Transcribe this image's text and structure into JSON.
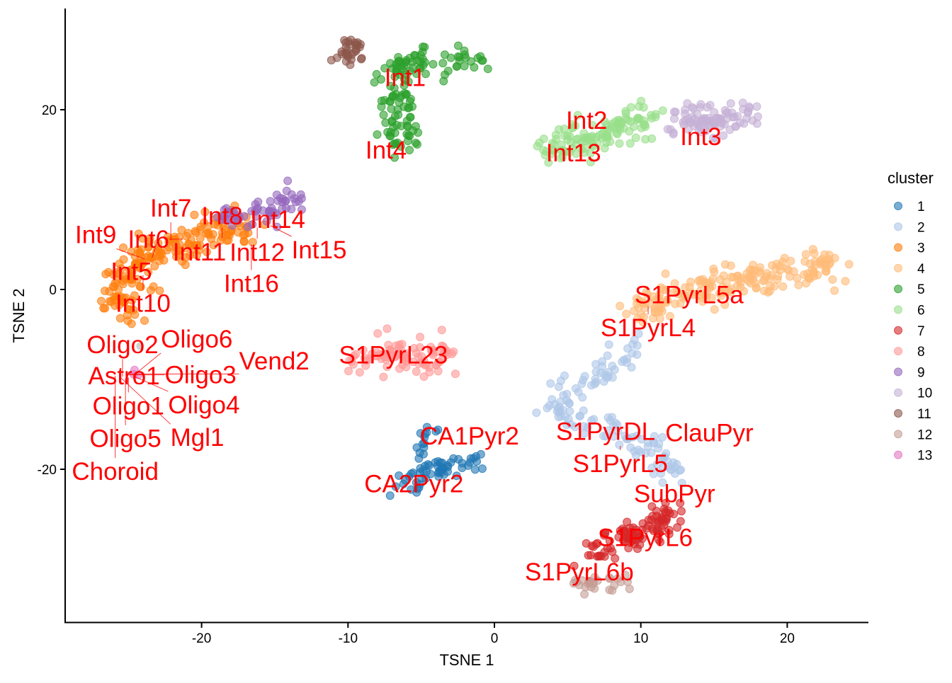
{
  "chart_data": {
    "type": "scatter",
    "title": "",
    "xlabel": "TSNE 1",
    "ylabel": "TSNE 2",
    "xlim": [
      -29.5,
      25.5
    ],
    "ylim": [
      -36.5,
      31
    ],
    "xticks": [
      -20,
      -10,
      0,
      10,
      20
    ],
    "yticks": [
      -20,
      0,
      20
    ],
    "grid": false,
    "legend": {
      "title": "cluster",
      "placement": "right"
    },
    "clusters": [
      {
        "name": "1",
        "color": "#1f77b4",
        "n": 70,
        "spread": 0.55,
        "path": [
          [
            -4.6,
            -15
          ],
          [
            -5,
            -20.5
          ],
          [
            -6.8,
            -22.5
          ]
        ],
        "extra": [
          [
            -5,
            -20
          ],
          [
            -1.2,
            -19.3
          ]
        ]
      },
      {
        "name": "2",
        "color": "#aec7e8",
        "n": 130,
        "spread": 0.6,
        "path": [
          [
            9.8,
            -6.2
          ],
          [
            7.5,
            -9
          ],
          [
            4.8,
            -11.5
          ],
          [
            4,
            -13.5
          ],
          [
            7.5,
            -15.5
          ],
          [
            11,
            -18
          ],
          [
            12.8,
            -21
          ]
        ]
      },
      {
        "name": "3",
        "color": "#ff7f0e",
        "n": 190,
        "spread": 0.75,
        "path": [
          [
            -25.5,
            -2.5
          ],
          [
            -25.2,
            1
          ],
          [
            -24,
            3.5
          ],
          [
            -21,
            5.5
          ],
          [
            -17,
            7
          ]
        ]
      },
      {
        "name": "4",
        "color": "#ffbb78",
        "n": 190,
        "spread": 0.75,
        "path": [
          [
            9.8,
            -3
          ],
          [
            12,
            -0.5
          ],
          [
            15,
            0.5
          ],
          [
            19,
            1.8
          ],
          [
            23,
            3
          ]
        ]
      },
      {
        "name": "5",
        "color": "#2ca02c",
        "n": 130,
        "spread": 0.65,
        "path": [
          [
            -7.8,
            23.5
          ],
          [
            -5,
            25.5
          ],
          [
            -1.5,
            25.5
          ]
        ],
        "extra": [
          [
            -6.8,
            23
          ],
          [
            -6.5,
            16
          ]
        ]
      },
      {
        "name": "6",
        "color": "#98df8a",
        "n": 120,
        "spread": 0.8,
        "path": [
          [
            3.5,
            15.5
          ],
          [
            7,
            17
          ],
          [
            11,
            19.5
          ]
        ]
      },
      {
        "name": "7",
        "color": "#d62728",
        "n": 100,
        "spread": 0.6,
        "path": [
          [
            6.9,
            -29.6
          ],
          [
            10,
            -27
          ],
          [
            12.3,
            -24.5
          ]
        ]
      },
      {
        "name": "8",
        "color": "#ff9896",
        "n": 90,
        "spread": 0.7,
        "path": [
          [
            -9.5,
            -7.3
          ],
          [
            -3.5,
            -7.5
          ]
        ]
      },
      {
        "name": "9",
        "color": "#9467bd",
        "n": 60,
        "spread": 0.6,
        "path": [
          [
            -18.3,
            8
          ],
          [
            -16,
            8.5
          ],
          [
            -13.5,
            10
          ]
        ]
      },
      {
        "name": "10",
        "color": "#c5b0d5",
        "n": 90,
        "spread": 0.7,
        "path": [
          [
            12.5,
            18
          ],
          [
            15,
            18.8
          ],
          [
            17.8,
            19.5
          ]
        ]
      },
      {
        "name": "11",
        "color": "#8c564b",
        "n": 30,
        "spread": 0.4,
        "path": [
          [
            -10.3,
            26
          ],
          [
            -9.7,
            27
          ]
        ]
      },
      {
        "name": "12",
        "color": "#c49c94",
        "n": 25,
        "spread": 0.5,
        "path": [
          [
            5.6,
            -32.8
          ],
          [
            8.5,
            -32.5
          ]
        ]
      },
      {
        "name": "13",
        "color": "#e377c2",
        "n": 3,
        "spread": 0.3,
        "path": [
          [
            -24.5,
            -9.5
          ],
          [
            -24.3,
            -9.6
          ]
        ]
      }
    ],
    "other_points": [
      {
        "x": -24.2,
        "y": -6.3,
        "color": "#c7c7c7"
      }
    ],
    "labels": [
      {
        "text": "Int1",
        "x": -6.1,
        "y": 23.6
      },
      {
        "text": "Int4",
        "x": -7.4,
        "y": 15.5
      },
      {
        "text": "Int2",
        "x": 6.3,
        "y": 18.8
      },
      {
        "text": "Int13",
        "x": 5.4,
        "y": 15.2
      },
      {
        "text": "Int3",
        "x": 14.1,
        "y": 17.0
      },
      {
        "text": "Int8",
        "x": -18.6,
        "y": 8.2
      },
      {
        "text": "Int14",
        "x": -14.8,
        "y": 7.8
      },
      {
        "text": "Int12",
        "x": -16.2,
        "y": 6.9
      },
      {
        "text": "Int15",
        "x": -15.3,
        "y": 7.1
      },
      {
        "text": "Int11",
        "x": -18.6,
        "y": 6.9
      },
      {
        "text": "Int6",
        "x": -21.3,
        "y": 5.6
      },
      {
        "text": "Int7",
        "x": -22.1,
        "y": 5.5
      },
      {
        "text": "Int5",
        "x": -23.0,
        "y": 5.5
      },
      {
        "text": "Int16",
        "x": -16.6,
        "y": 5.0
      },
      {
        "text": "Int9",
        "x": -23.9,
        "y": 3.4
      },
      {
        "text": "Int10",
        "x": -24.0,
        "y": 1.6
      },
      {
        "text": "S1PyrL23",
        "x": -6.9,
        "y": -7.3
      },
      {
        "text": "CA1Pyr2",
        "x": -1.7,
        "y": -16.3
      },
      {
        "text": "CA2Pyr2",
        "x": -5.5,
        "y": -21.6
      },
      {
        "text": "S1PyrL5a",
        "x": 13.3,
        "y": -0.6
      },
      {
        "text": "S1PyrL4",
        "x": 10.5,
        "y": -1.9
      },
      {
        "text": "S1PyrDL",
        "x": 7.6,
        "y": -15.8
      },
      {
        "text": "S1PyrL5",
        "x": 8.6,
        "y": -17.4
      },
      {
        "text": "ClauPyr",
        "x": 12.0,
        "y": -17.5
      },
      {
        "text": "SubPyr",
        "x": 12.3,
        "y": -22.7
      },
      {
        "text": "S1PyrL6",
        "x": 10.3,
        "y": -27.6
      },
      {
        "text": "S1PyrL6b",
        "x": 5.8,
        "y": -31.4
      },
      {
        "text": "Astro1",
        "x": -25.3,
        "y": -9.6
      },
      {
        "text": "Oligo1",
        "x": -25.0,
        "y": -9.8
      },
      {
        "text": "Oligo2",
        "x": -25.4,
        "y": -9.7
      },
      {
        "text": "Oligo3",
        "x": -25.1,
        "y": -9.5
      },
      {
        "text": "Oligo4",
        "x": -24.7,
        "y": -9.6
      },
      {
        "text": "Oligo5",
        "x": -25.2,
        "y": -9.9
      },
      {
        "text": "Oligo6",
        "x": -24.6,
        "y": -9.5
      },
      {
        "text": "Mgl1",
        "x": -25.6,
        "y": -9.7
      },
      {
        "text": "Choroid",
        "x": -25.9,
        "y": -9.6
      },
      {
        "text": "Vend2",
        "x": -25.0,
        "y": -9.4
      }
    ],
    "label_color": "#ff0000"
  }
}
